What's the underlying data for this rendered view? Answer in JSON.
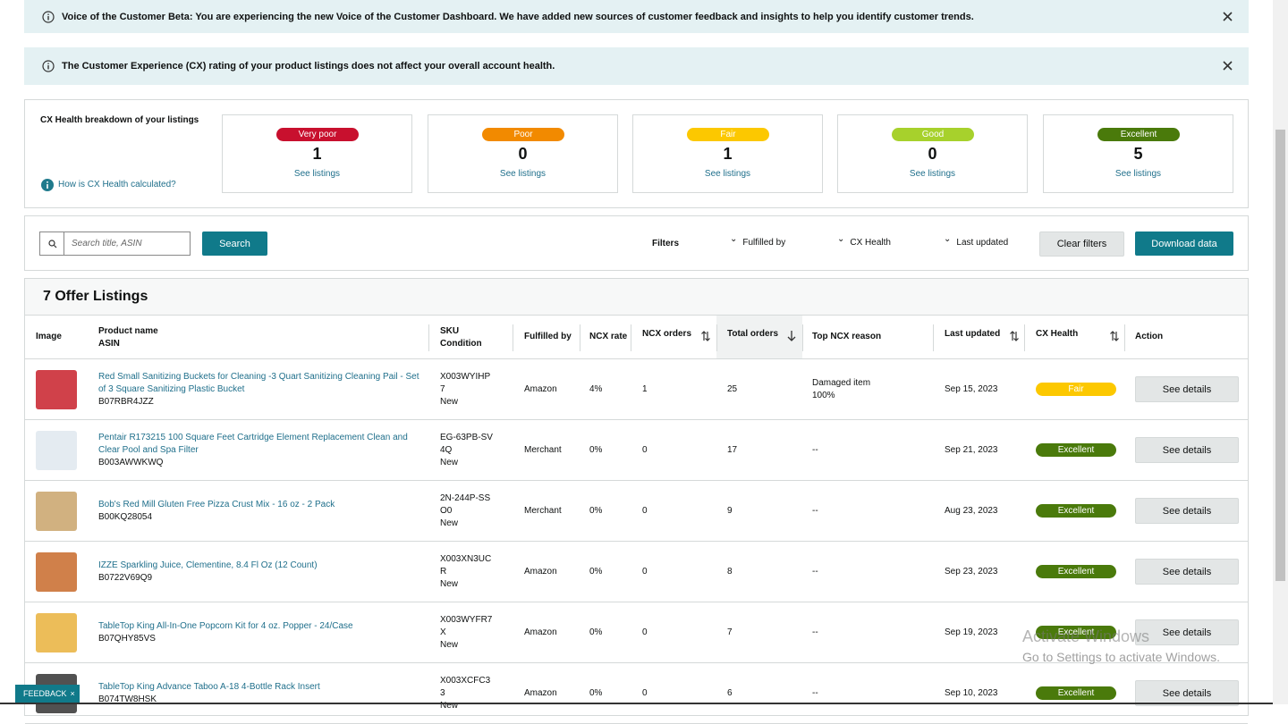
{
  "banners": [
    {
      "text": "Voice of the Customer Beta: You are experiencing the new Voice of the Customer Dashboard. We have added new sources of customer feedback and insights to help you identify customer trends."
    },
    {
      "text": "The Customer Experience (CX) rating of your product listings does not affect your overall account health."
    }
  ],
  "health": {
    "title": "CX Health breakdown of your listings",
    "help_link": "How is CX Health calculated?",
    "cards": [
      {
        "label": "Very poor",
        "count": 1,
        "link": "See listings",
        "color": "#c8102e",
        "text_color": "#ffffff"
      },
      {
        "label": "Poor",
        "count": 0,
        "link": "See listings",
        "color": "#f28a00",
        "text_color": "#ffffff"
      },
      {
        "label": "Fair",
        "count": 1,
        "link": "See listings",
        "color": "#fcc800",
        "text_color": "#ffffff"
      },
      {
        "label": "Good",
        "count": 0,
        "link": "See listings",
        "color": "#a7d12c",
        "text_color": "#ffffff"
      },
      {
        "label": "Excellent",
        "count": 5,
        "link": "See listings",
        "color": "#4a7a0b",
        "text_color": "#ffffff"
      }
    ]
  },
  "toolbar": {
    "search_placeholder": "Search title, ASIN",
    "search_button": "Search",
    "filters_label": "Filters",
    "filters": [
      "Fulfilled by",
      "CX Health",
      "Last updated"
    ],
    "clear_button": "Clear filters",
    "download_button": "Download data"
  },
  "listings": {
    "title": "7 Offer Listings",
    "columns": {
      "image": "Image",
      "product": "Product name",
      "asin": "ASIN",
      "sku": "SKU",
      "condition": "Condition",
      "fulfilled": "Fulfilled by",
      "ncx_rate": "NCX rate",
      "ncx_orders": "NCX orders",
      "total_orders": "Total orders",
      "reason": "Top NCX reason",
      "updated": "Last updated",
      "health": "CX Health",
      "action": "Action"
    },
    "rows": [
      {
        "name": "Red Small Sanitizing Buckets for Cleaning -3 Quart Sanitizing Cleaning Pail - Set of 3 Square Sanitizing Plastic Bucket",
        "asin": "B07RBR4JZZ",
        "sku": "X003WYIHP7",
        "condition": "New",
        "fulfilled": "Amazon",
        "ncx_rate": "4%",
        "ncx_orders": 1,
        "total_orders": 25,
        "reason": "Damaged item",
        "reason_pct": "100%",
        "updated": "Sep 15, 2023",
        "health": "Fair",
        "action": "See details"
      },
      {
        "name": "Pentair R173215 100 Square Feet Cartridge Element Replacement Clean and Clear Pool and Spa Filter",
        "asin": "B003AWWKWQ",
        "sku": "EG-63PB-SV4Q",
        "condition": "New",
        "fulfilled": "Merchant",
        "ncx_rate": "0%",
        "ncx_orders": 0,
        "total_orders": 17,
        "reason": "--",
        "updated": "Sep 21, 2023",
        "health": "Excellent",
        "action": "See details"
      },
      {
        "name": "Bob's Red Mill Gluten Free Pizza Crust Mix - 16 oz - 2 Pack",
        "asin": "B00KQ28054",
        "sku": "2N-244P-SSO0",
        "condition": "New",
        "fulfilled": "Merchant",
        "ncx_rate": "0%",
        "ncx_orders": 0,
        "total_orders": 9,
        "reason": "--",
        "updated": "Aug 23, 2023",
        "health": "Excellent",
        "action": "See details"
      },
      {
        "name": "IZZE Sparkling Juice, Clementine, 8.4 Fl Oz (12 Count)",
        "asin": "B0722V69Q9",
        "sku": "X003XN3UCR",
        "condition": "New",
        "fulfilled": "Amazon",
        "ncx_rate": "0%",
        "ncx_orders": 0,
        "total_orders": 8,
        "reason": "--",
        "updated": "Sep 23, 2023",
        "health": "Excellent",
        "action": "See details"
      },
      {
        "name": "TableTop King All-In-One Popcorn Kit for 4 oz. Popper - 24/Case",
        "asin": "B07QHY85VS",
        "sku": "X003WYFR7X",
        "condition": "New",
        "fulfilled": "Amazon",
        "ncx_rate": "0%",
        "ncx_orders": 0,
        "total_orders": 7,
        "reason": "--",
        "updated": "Sep 19, 2023",
        "health": "Excellent",
        "action": "See details"
      },
      {
        "name": "TableTop King Advance Taboo A-18 4-Bottle Rack Insert",
        "asin": "B074TW8HSK",
        "sku": "X003XCFC33",
        "condition": "New",
        "fulfilled": "Amazon",
        "ncx_rate": "0%",
        "ncx_orders": 0,
        "total_orders": 6,
        "reason": "--",
        "updated": "Sep 10, 2023",
        "health": "Excellent",
        "action": "See details"
      }
    ]
  },
  "feedback": "FEEDBACK",
  "watermark": {
    "title": "Activate Windows",
    "subtitle": "Go to Settings to activate Windows."
  }
}
